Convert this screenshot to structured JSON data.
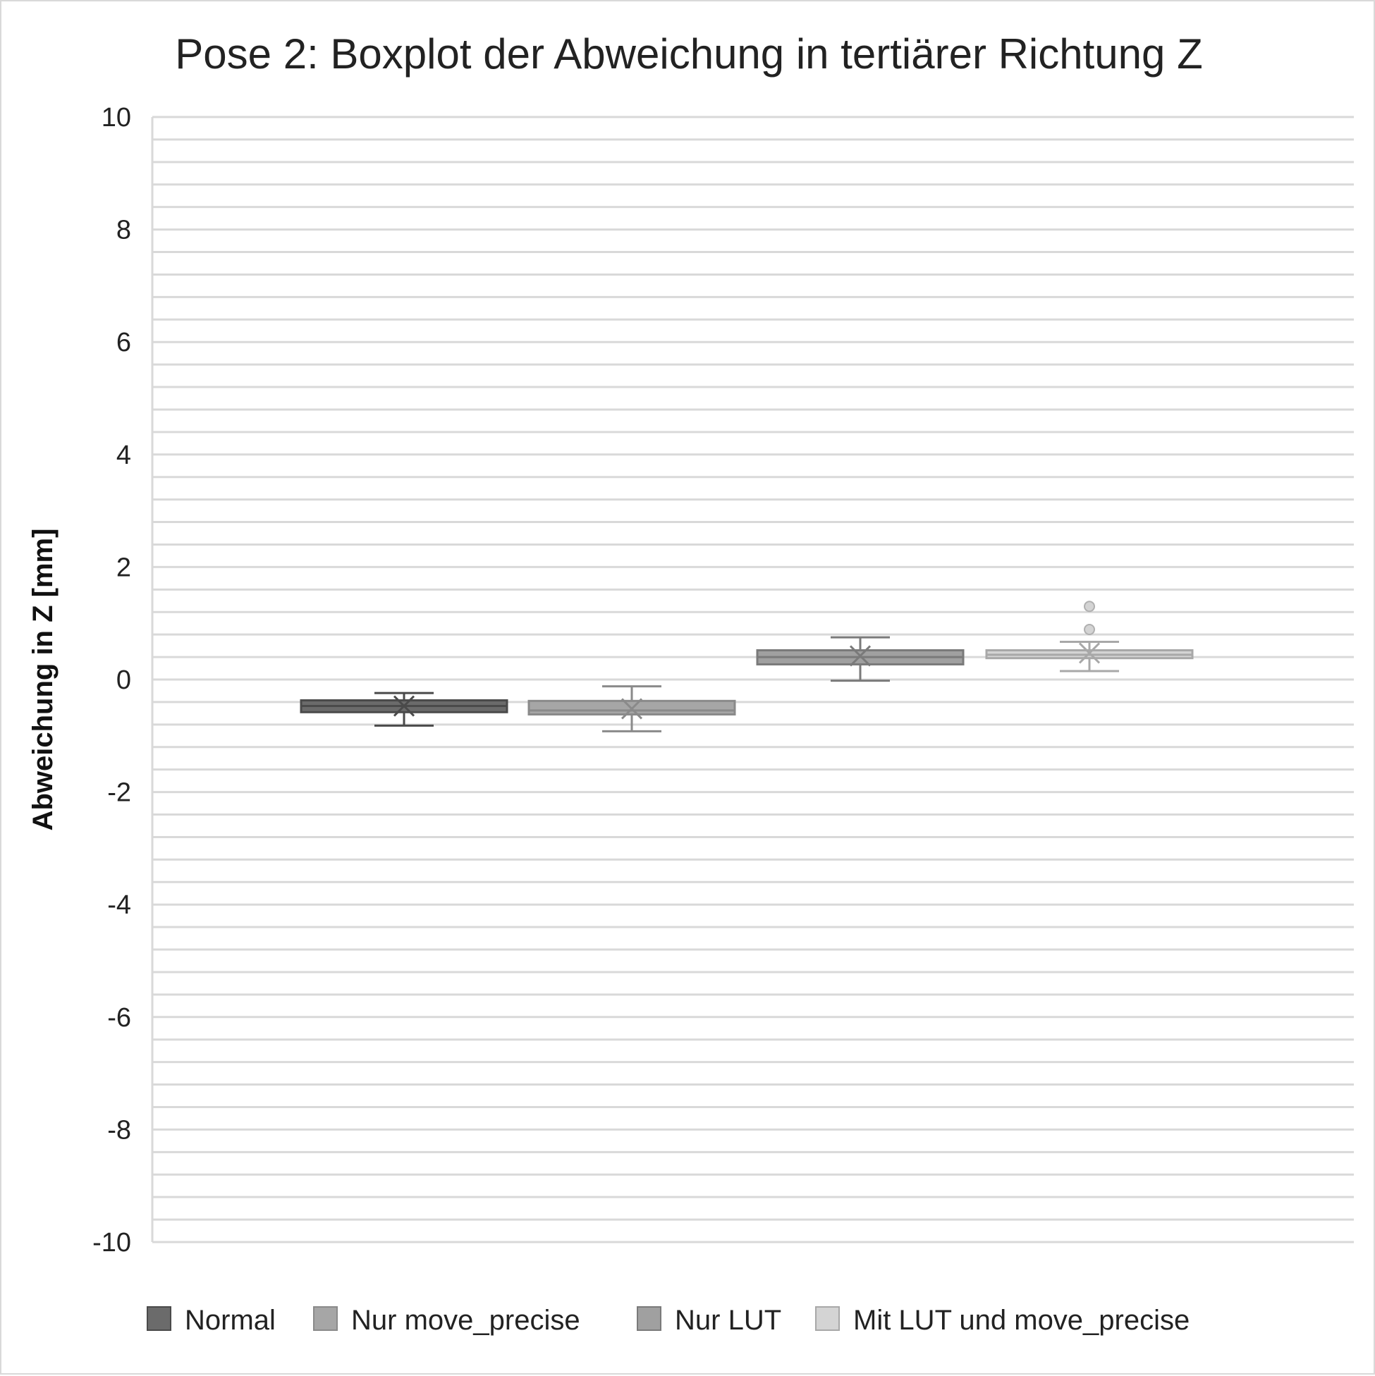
{
  "chart_data": {
    "type": "boxplot",
    "title": "Pose 2: Boxplot der Abweichung in tertiärer Richtung Z",
    "ylabel": "Abweichung in Z [mm]",
    "xlabel": "",
    "ylim": [
      -10,
      10
    ],
    "y_ticks": [
      "10",
      "8",
      "6",
      "4",
      "2",
      "0",
      "-2",
      "-4",
      "-6",
      "-8",
      "-10"
    ],
    "y_minor_step": 0.4,
    "grid": true,
    "legend_position": "bottom",
    "series": [
      {
        "name": "Normal",
        "color": "#6b6b6b",
        "whisker_low": -0.82,
        "q1": -0.58,
        "median": -0.47,
        "q3": -0.37,
        "whisker_high": -0.24,
        "mean": -0.47,
        "outliers": []
      },
      {
        "name": "Nur move_precise",
        "color": "#a6a6a6",
        "whisker_low": -0.92,
        "q1": -0.62,
        "median": -0.55,
        "q3": -0.38,
        "whisker_high": -0.12,
        "mean": -0.52,
        "outliers": []
      },
      {
        "name": "Nur LUT",
        "color": "#a0a0a0",
        "whisker_low": -0.02,
        "q1": 0.27,
        "median": 0.4,
        "q3": 0.52,
        "whisker_high": 0.75,
        "mean": 0.42,
        "outliers": []
      },
      {
        "name": "Mit LUT und move_precise",
        "color": "#d4d4d4",
        "whisker_low": 0.15,
        "q1": 0.38,
        "median": 0.44,
        "q3": 0.52,
        "whisker_high": 0.67,
        "mean": 0.47,
        "outliers": [
          0.89,
          1.3
        ]
      }
    ]
  }
}
